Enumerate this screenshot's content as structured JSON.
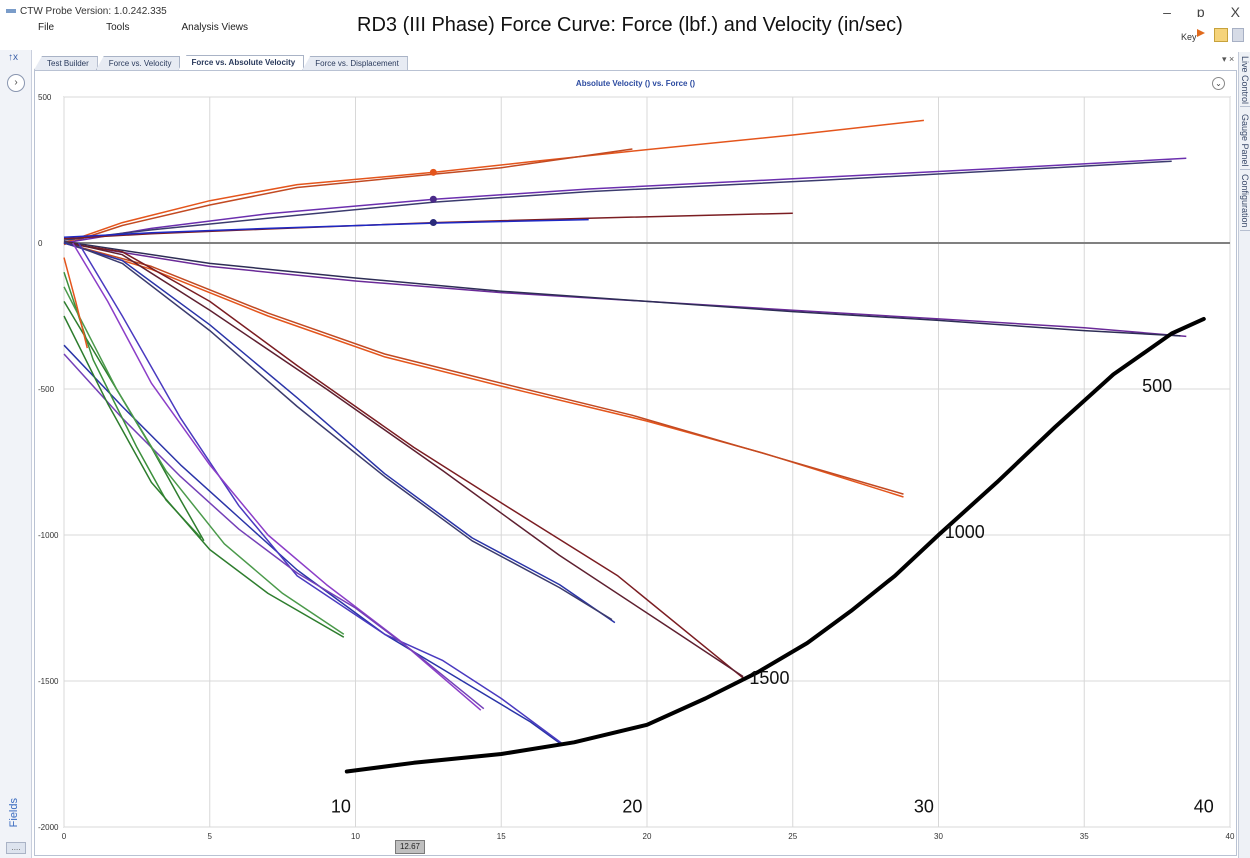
{
  "app": {
    "title": "CTW Probe Version: 1.0.242.335",
    "menu": [
      "File",
      "Tools",
      "Analysis Views"
    ],
    "overlay_title": "RD3 (III Phase) Force Curve: Force (lbf.) and Velocity (in/sec)",
    "key_label": "Key",
    "window_controls": [
      "–",
      "ɒ",
      "X"
    ]
  },
  "left_panel": {
    "fields_label": "Fields",
    "pin_label": "↑x",
    "expand_label": "›",
    "bottom_label": "...."
  },
  "tabs": [
    {
      "label": "Test Builder",
      "active": false
    },
    {
      "label": "Force vs. Velocity",
      "active": false
    },
    {
      "label": "Force vs. Absolute Velocity",
      "active": true
    },
    {
      "label": "Force vs. Displacement",
      "active": false
    }
  ],
  "tab_menu": "▾ ×",
  "right_panel_tabs": [
    "Live Control",
    "Gauge Panel",
    "Configuration"
  ],
  "chart_collapse": "⌄",
  "chart_data": {
    "type": "line",
    "title": "Absolute Velocity () vs. Force ()",
    "xlim": [
      0,
      40
    ],
    "ylim": [
      -2000,
      500
    ],
    "x_ticks": [
      0,
      5,
      10,
      15,
      20,
      25,
      30,
      35,
      40
    ],
    "y_ticks": [
      500,
      0,
      -500,
      -1000,
      -1500,
      -2000
    ],
    "grid": true,
    "cursor_label": "12.67",
    "cursor_x": 12.67,
    "series": [
      {
        "color": "#e4551c",
        "points": [
          [
            0,
            0
          ],
          [
            2,
            70
          ],
          [
            5,
            145
          ],
          [
            8,
            200
          ],
          [
            12.7,
            242
          ],
          [
            16,
            278
          ],
          [
            20,
            320
          ],
          [
            25,
            370
          ],
          [
            29.5,
            420
          ]
        ]
      },
      {
        "color": "#c24a22",
        "points": [
          [
            0,
            -5
          ],
          [
            2,
            60
          ],
          [
            5,
            130
          ],
          [
            8,
            190
          ],
          [
            12.7,
            236
          ],
          [
            15,
            258
          ],
          [
            19.5,
            322
          ]
        ]
      },
      {
        "color": "#6b2fae",
        "points": [
          [
            0,
            0
          ],
          [
            3,
            50
          ],
          [
            7,
            100
          ],
          [
            12.7,
            150
          ],
          [
            18,
            185
          ],
          [
            25,
            220
          ],
          [
            32,
            255
          ],
          [
            38.5,
            290
          ]
        ]
      },
      {
        "color": "#3b3b6e",
        "points": [
          [
            0,
            10
          ],
          [
            3,
            45
          ],
          [
            8,
            95
          ],
          [
            12.7,
            140
          ],
          [
            18,
            176
          ],
          [
            26,
            215
          ],
          [
            34,
            258
          ],
          [
            38,
            280
          ]
        ]
      },
      {
        "color": "#7b1d22",
        "points": [
          [
            0,
            15
          ],
          [
            3,
            32
          ],
          [
            7,
            48
          ],
          [
            12.7,
            70
          ],
          [
            18,
            85
          ],
          [
            25,
            102
          ]
        ]
      },
      {
        "color": "#1e28c4",
        "points": [
          [
            0,
            20
          ],
          [
            3,
            35
          ],
          [
            7,
            50
          ],
          [
            12.7,
            68
          ],
          [
            18,
            80
          ]
        ]
      },
      {
        "color": "#6a2a98",
        "points": [
          [
            0,
            0
          ],
          [
            5,
            -80
          ],
          [
            10,
            -130
          ],
          [
            15,
            -170
          ],
          [
            20,
            -200
          ],
          [
            25,
            -230
          ],
          [
            30,
            -260
          ],
          [
            35,
            -290
          ],
          [
            38.5,
            -320
          ]
        ]
      },
      {
        "color": "#2d2d55",
        "points": [
          [
            0,
            5
          ],
          [
            5,
            -70
          ],
          [
            10,
            -120
          ],
          [
            15,
            -165
          ],
          [
            20,
            -200
          ],
          [
            25,
            -235
          ],
          [
            30,
            -265
          ],
          [
            35,
            -300
          ],
          [
            38.3,
            -318
          ]
        ]
      },
      {
        "color": "#e4551c",
        "points": [
          [
            0,
            0
          ],
          [
            3,
            -90
          ],
          [
            7,
            -250
          ],
          [
            11,
            -390
          ],
          [
            15,
            -490
          ],
          [
            20,
            -610
          ],
          [
            24,
            -720
          ],
          [
            28.8,
            -870
          ]
        ]
      },
      {
        "color": "#c24a22",
        "points": [
          [
            0,
            0
          ],
          [
            3,
            -80
          ],
          [
            7,
            -240
          ],
          [
            11,
            -380
          ],
          [
            15,
            -480
          ],
          [
            19.5,
            -590
          ],
          [
            28.8,
            -860
          ]
        ]
      },
      {
        "color": "#7b1d22",
        "points": [
          [
            0,
            0
          ],
          [
            2,
            -30
          ],
          [
            5,
            -200
          ],
          [
            8,
            -420
          ],
          [
            12,
            -700
          ],
          [
            15,
            -890
          ],
          [
            19,
            -1140
          ],
          [
            23.3,
            -1490
          ]
        ]
      },
      {
        "color": "#5e2030",
        "points": [
          [
            0,
            5
          ],
          [
            2,
            -40
          ],
          [
            5,
            -230
          ],
          [
            9,
            -500
          ],
          [
            13,
            -780
          ],
          [
            17,
            -1070
          ],
          [
            20.5,
            -1300
          ],
          [
            23.3,
            -1485
          ]
        ]
      },
      {
        "color": "#2a34a8",
        "points": [
          [
            0,
            0
          ],
          [
            2,
            -60
          ],
          [
            5,
            -280
          ],
          [
            8,
            -530
          ],
          [
            11,
            -790
          ],
          [
            14,
            -1010
          ],
          [
            17,
            -1170
          ],
          [
            18.9,
            -1300
          ]
        ]
      },
      {
        "color": "#3b3b6e",
        "points": [
          [
            0,
            5
          ],
          [
            2,
            -70
          ],
          [
            5,
            -300
          ],
          [
            8,
            -560
          ],
          [
            11,
            -800
          ],
          [
            14,
            -1020
          ],
          [
            17,
            -1180
          ],
          [
            18.8,
            -1290
          ]
        ]
      },
      {
        "color": "#2a34a8",
        "points": [
          [
            0,
            -350
          ],
          [
            2,
            -560
          ],
          [
            4,
            -760
          ],
          [
            6,
            -940
          ],
          [
            8,
            -1120
          ],
          [
            11,
            -1340
          ],
          [
            13.5,
            -1490
          ],
          [
            16,
            -1640
          ],
          [
            17.1,
            -1720
          ]
        ]
      },
      {
        "color": "#4a3ac0",
        "points": [
          [
            0.5,
            0
          ],
          [
            2,
            -250
          ],
          [
            4,
            -600
          ],
          [
            6,
            -900
          ],
          [
            8,
            -1140
          ],
          [
            11,
            -1340
          ],
          [
            13,
            -1430
          ],
          [
            15,
            -1560
          ],
          [
            17.1,
            -1715
          ]
        ]
      },
      {
        "color": "#8c3ec8",
        "points": [
          [
            0.3,
            0
          ],
          [
            1.5,
            -200
          ],
          [
            3,
            -480
          ],
          [
            5,
            -760
          ],
          [
            7,
            -1000
          ],
          [
            9,
            -1170
          ],
          [
            11.5,
            -1360
          ],
          [
            14.3,
            -1600
          ]
        ]
      },
      {
        "color": "#7440b8",
        "points": [
          [
            0,
            -380
          ],
          [
            2,
            -600
          ],
          [
            4,
            -800
          ],
          [
            6,
            -980
          ],
          [
            8,
            -1130
          ],
          [
            10,
            -1250
          ],
          [
            12,
            -1400
          ],
          [
            14.4,
            -1595
          ]
        ]
      },
      {
        "color": "#2e7d2e",
        "points": [
          [
            0,
            -200
          ],
          [
            1.5,
            -450
          ],
          [
            3,
            -700
          ],
          [
            4,
            -880
          ],
          [
            4.8,
            -1020
          ]
        ]
      },
      {
        "color": "#3b8f3b",
        "points": [
          [
            0,
            -100
          ],
          [
            1,
            -400
          ],
          [
            2.5,
            -700
          ],
          [
            3.5,
            -880
          ],
          [
            4.7,
            -1010
          ]
        ]
      },
      {
        "color": "#2e7d2e",
        "points": [
          [
            0,
            -250
          ],
          [
            1.5,
            -550
          ],
          [
            3,
            -820
          ],
          [
            5,
            -1050
          ],
          [
            7,
            -1200
          ],
          [
            9.6,
            -1350
          ]
        ]
      },
      {
        "color": "#4b9a4b",
        "points": [
          [
            0,
            -150
          ],
          [
            1.8,
            -500
          ],
          [
            3.5,
            -780
          ],
          [
            5.5,
            -1030
          ],
          [
            7.5,
            -1200
          ],
          [
            9.6,
            -1340
          ]
        ]
      },
      {
        "color": "#e4551c",
        "points": [
          [
            0,
            -50
          ],
          [
            0.4,
            -200
          ],
          [
            0.8,
            -360
          ]
        ]
      }
    ],
    "markers": [
      {
        "x": 12.67,
        "y": 242,
        "color": "#e4551c"
      },
      {
        "x": 12.67,
        "y": 150,
        "color": "#4a2a88"
      },
      {
        "x": 12.67,
        "y": 70,
        "color": "#2a2a7a"
      }
    ],
    "annotation_curve": {
      "color": "#000000",
      "points": [
        [
          9.7,
          -1810
        ],
        [
          12,
          -1780
        ],
        [
          15,
          -1750
        ],
        [
          17.5,
          -1710
        ],
        [
          20,
          -1650
        ],
        [
          22,
          -1560
        ],
        [
          23.8,
          -1470
        ],
        [
          25.5,
          -1370
        ],
        [
          27,
          -1260
        ],
        [
          28.5,
          -1140
        ],
        [
          30,
          -1000
        ],
        [
          32,
          -820
        ],
        [
          34,
          -630
        ],
        [
          36,
          -450
        ],
        [
          38,
          -310
        ],
        [
          39.1,
          -260
        ]
      ]
    },
    "annotations": [
      {
        "text": "500",
        "x": 37.5,
        "y": -510
      },
      {
        "text": "1000",
        "x": 30.9,
        "y": -1010
      },
      {
        "text": "1500",
        "x": 24.2,
        "y": -1510
      },
      {
        "text": "10",
        "x": 9.5,
        "y": -1950
      },
      {
        "text": "20",
        "x": 19.5,
        "y": -1950
      },
      {
        "text": "30",
        "x": 29.5,
        "y": -1950
      },
      {
        "text": "40",
        "x": 39.1,
        "y": -1950
      }
    ]
  }
}
